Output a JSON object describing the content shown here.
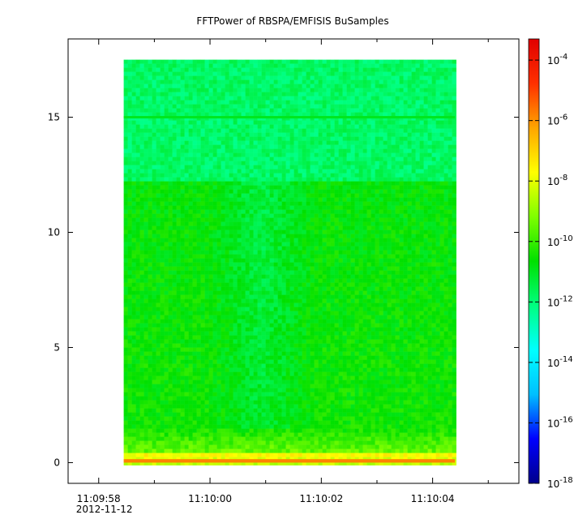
{
  "chart_data": {
    "type": "heatmap",
    "title": "FFTPower of RBSPA/EMFISIS  BuSamples",
    "xlabel": "",
    "ylabel": "",
    "x": {
      "ticks": [
        {
          "value": -2.0,
          "label": "11:09:58",
          "sublabel": "2012-11-12"
        },
        {
          "value": 0.0,
          "label": "11:10:00",
          "sublabel": ""
        },
        {
          "value": 2.0,
          "label": "11:10:02",
          "sublabel": ""
        },
        {
          "value": 4.0,
          "label": "11:10:04",
          "sublabel": ""
        }
      ],
      "minor_ticks": [
        -1.0,
        1.0,
        3.0,
        5.0
      ],
      "range": [
        -2.55,
        5.55
      ],
      "data_range": [
        -1.55,
        4.4
      ]
    },
    "y": {
      "ticks": [
        {
          "value": 0,
          "label": "0"
        },
        {
          "value": 5,
          "label": "5"
        },
        {
          "value": 10,
          "label": "10"
        },
        {
          "value": 15,
          "label": "15"
        }
      ],
      "range": [
        -0.9,
        18.4
      ],
      "data_range": [
        0,
        17.5
      ]
    },
    "colorbar": {
      "scale": "log",
      "range_exponent": [
        -18,
        -3.3
      ],
      "ticks": [
        {
          "exponent": -4,
          "base": "10",
          "exp": "-4"
        },
        {
          "exponent": -6,
          "base": "10",
          "exp": "-6"
        },
        {
          "exponent": -8,
          "base": "10",
          "exp": "-8"
        },
        {
          "exponent": -10,
          "base": "10",
          "exp": "-10"
        },
        {
          "exponent": -12,
          "base": "10",
          "exp": "-12"
        },
        {
          "exponent": -14,
          "base": "10",
          "exp": "-14"
        },
        {
          "exponent": -16,
          "base": "10",
          "exp": "-16"
        },
        {
          "exponent": -18,
          "base": "10",
          "exp": "-18"
        }
      ],
      "colormap": [
        "#00008b",
        "#0000ff",
        "#00bfff",
        "#00ffff",
        "#00ff80",
        "#00e000",
        "#7fff00",
        "#ffff00",
        "#ffa500",
        "#ff3000",
        "#e00000"
      ]
    },
    "features": [
      {
        "description_level": "line",
        "y": 15.0,
        "log_power": -11.0
      },
      {
        "description_level": "upper_band",
        "y_from": 12.3,
        "y_to": 17.5,
        "log_power": -11.8
      },
      {
        "description_level": "lower_band",
        "y_from": 0.5,
        "y_to": 12.3,
        "log_power": -10.5
      },
      {
        "description_level": "low_freq",
        "y_from": 0,
        "y_to": 0.5,
        "log_power": -7.5
      }
    ]
  }
}
